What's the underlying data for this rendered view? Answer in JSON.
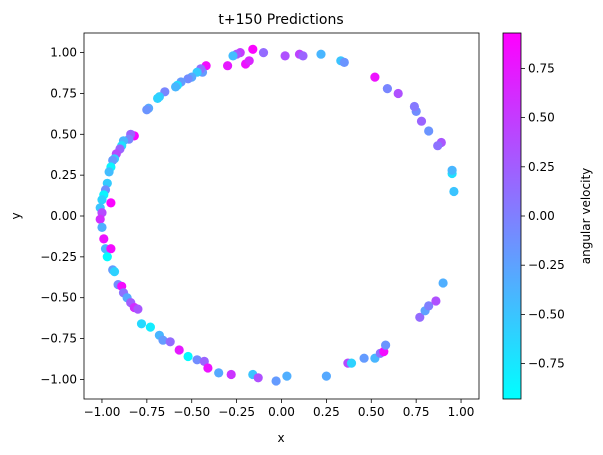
{
  "chart_data": {
    "type": "scatter",
    "title": "t+150 Predictions",
    "xlabel": "x",
    "ylabel": "y",
    "xlim": [
      -1.1,
      1.1
    ],
    "ylim": [
      -1.12,
      1.12
    ],
    "xticks": [
      -1.0,
      -0.75,
      -0.5,
      -0.25,
      0.0,
      0.25,
      0.5,
      0.75,
      1.0
    ],
    "xtick_labels": [
      "−1.00",
      "−0.75",
      "−0.50",
      "−0.25",
      "0.00",
      "0.25",
      "0.50",
      "0.75",
      "1.00"
    ],
    "yticks": [
      -1.0,
      -0.75,
      -0.5,
      -0.25,
      0.0,
      0.25,
      0.5,
      0.75,
      1.0
    ],
    "ytick_labels": [
      "−1.00",
      "−0.75",
      "−0.50",
      "−0.25",
      "0.00",
      "0.25",
      "0.50",
      "0.75",
      "1.00"
    ],
    "grid": false,
    "colormap": "cool",
    "colorbar": {
      "label": "angular velocity",
      "range": [
        -0.93,
        0.93
      ],
      "ticks": [
        -0.75,
        -0.5,
        -0.25,
        0.0,
        0.25,
        0.5,
        0.75
      ],
      "tick_labels": [
        "−0.75",
        "−0.50",
        "−0.25",
        "0.00",
        "0.25",
        "0.50",
        "0.75"
      ]
    },
    "points": [
      [
        -0.16,
        1.02,
        0.9
      ],
      [
        -0.23,
        1.0,
        0.5
      ],
      [
        -0.25,
        0.99,
        0.3
      ],
      [
        -0.27,
        0.98,
        -0.45
      ],
      [
        -0.1,
        1.0,
        0.15
      ],
      [
        0.1,
        0.99,
        0.45
      ],
      [
        0.12,
        0.98,
        0.2
      ],
      [
        0.22,
        0.99,
        -0.4
      ],
      [
        0.33,
        0.95,
        -0.5
      ],
      [
        0.35,
        0.94,
        -0.15
      ],
      [
        0.02,
        0.98,
        0.35
      ],
      [
        -0.2,
        0.93,
        0.8
      ],
      [
        -0.18,
        0.95,
        0.65
      ],
      [
        -0.3,
        0.92,
        0.75
      ],
      [
        -0.42,
        0.92,
        0.85
      ],
      [
        -0.44,
        0.88,
        -0.2
      ],
      [
        -0.45,
        0.9,
        0.1
      ],
      [
        -0.47,
        0.88,
        -0.55
      ],
      [
        -0.5,
        0.85,
        -0.3
      ],
      [
        -0.52,
        0.84,
        -0.1
      ],
      [
        -0.56,
        0.82,
        -0.2
      ],
      [
        -0.58,
        0.8,
        -0.7
      ],
      [
        -0.59,
        0.79,
        -0.4
      ],
      [
        -0.65,
        0.76,
        -0.05
      ],
      [
        -0.68,
        0.73,
        -0.55
      ],
      [
        -0.69,
        0.72,
        -0.6
      ],
      [
        -0.74,
        0.66,
        -0.3
      ],
      [
        -0.75,
        0.65,
        -0.15
      ],
      [
        -0.82,
        0.49,
        0.9
      ],
      [
        -0.84,
        0.5,
        0.2
      ],
      [
        -0.85,
        0.47,
        -0.05
      ],
      [
        -0.88,
        0.46,
        -0.4
      ],
      [
        -0.89,
        0.43,
        -0.7
      ],
      [
        -0.9,
        0.41,
        0.2
      ],
      [
        -0.92,
        0.38,
        0.4
      ],
      [
        -0.93,
        0.35,
        -0.55
      ],
      [
        -0.94,
        0.34,
        -0.2
      ],
      [
        -0.95,
        0.3,
        -0.85
      ],
      [
        -0.96,
        0.27,
        -0.45
      ],
      [
        -0.97,
        0.2,
        -0.55
      ],
      [
        -0.98,
        0.16,
        -0.1
      ],
      [
        -0.99,
        0.13,
        -0.85
      ],
      [
        -1.0,
        0.1,
        -0.6
      ],
      [
        -0.95,
        0.08,
        0.9
      ],
      [
        -1.01,
        0.05,
        -0.5
      ],
      [
        -1.0,
        0.02,
        0.4
      ],
      [
        -1.01,
        -0.02,
        0.6
      ],
      [
        -1.0,
        -0.07,
        -0.35
      ],
      [
        -0.99,
        -0.14,
        0.8
      ],
      [
        -0.98,
        -0.2,
        -0.4
      ],
      [
        -0.95,
        -0.2,
        0.85
      ],
      [
        -0.97,
        -0.25,
        -0.9
      ],
      [
        -0.94,
        -0.33,
        -0.2
      ],
      [
        -0.93,
        -0.34,
        -0.6
      ],
      [
        -0.91,
        -0.42,
        -0.1
      ],
      [
        -0.89,
        -0.43,
        0.85
      ],
      [
        -0.88,
        -0.47,
        0.1
      ],
      [
        -0.86,
        -0.5,
        -0.3
      ],
      [
        -0.84,
        -0.53,
        0.25
      ],
      [
        -0.82,
        -0.56,
        0.6
      ],
      [
        -0.8,
        -0.57,
        0.3
      ],
      [
        -0.78,
        -0.66,
        -0.65
      ],
      [
        -0.73,
        -0.68,
        -0.8
      ],
      [
        -0.68,
        -0.73,
        -0.4
      ],
      [
        -0.66,
        -0.76,
        -0.2
      ],
      [
        -0.62,
        -0.77,
        0.15
      ],
      [
        -0.57,
        -0.82,
        0.75
      ],
      [
        -0.52,
        -0.86,
        -0.9
      ],
      [
        -0.47,
        -0.88,
        -0.1
      ],
      [
        -0.43,
        -0.89,
        0.2
      ],
      [
        -0.41,
        -0.93,
        0.8
      ],
      [
        -0.35,
        -0.96,
        -0.3
      ],
      [
        -0.28,
        -0.97,
        0.55
      ],
      [
        -0.16,
        -0.97,
        -0.5
      ],
      [
        -0.13,
        -0.99,
        0.35
      ],
      [
        -0.03,
        -1.01,
        -0.2
      ],
      [
        0.03,
        -0.98,
        -0.35
      ],
      [
        0.25,
        -0.98,
        -0.3
      ],
      [
        0.37,
        -0.9,
        0.4
      ],
      [
        0.39,
        -0.9,
        -0.6
      ],
      [
        0.46,
        -0.87,
        -0.2
      ],
      [
        0.52,
        -0.87,
        -0.4
      ],
      [
        0.55,
        -0.84,
        0.1
      ],
      [
        0.57,
        -0.83,
        0.85
      ],
      [
        0.58,
        -0.79,
        -0.15
      ],
      [
        0.77,
        -0.62,
        0.15
      ],
      [
        0.8,
        -0.58,
        -0.25
      ],
      [
        0.82,
        -0.55,
        0.0
      ],
      [
        0.86,
        -0.52,
        0.35
      ],
      [
        0.9,
        -0.41,
        -0.35
      ],
      [
        0.96,
        0.15,
        -0.5
      ],
      [
        0.95,
        0.26,
        -0.7
      ],
      [
        0.95,
        0.28,
        -0.4
      ],
      [
        0.89,
        0.45,
        0.3
      ],
      [
        0.87,
        0.43,
        0.1
      ],
      [
        0.82,
        0.52,
        -0.15
      ],
      [
        0.78,
        0.58,
        0.2
      ],
      [
        0.75,
        0.64,
        -0.1
      ],
      [
        0.74,
        0.67,
        0.05
      ],
      [
        0.65,
        0.75,
        0.35
      ],
      [
        0.59,
        0.78,
        -0.05
      ],
      [
        0.52,
        0.85,
        0.8
      ]
    ]
  }
}
